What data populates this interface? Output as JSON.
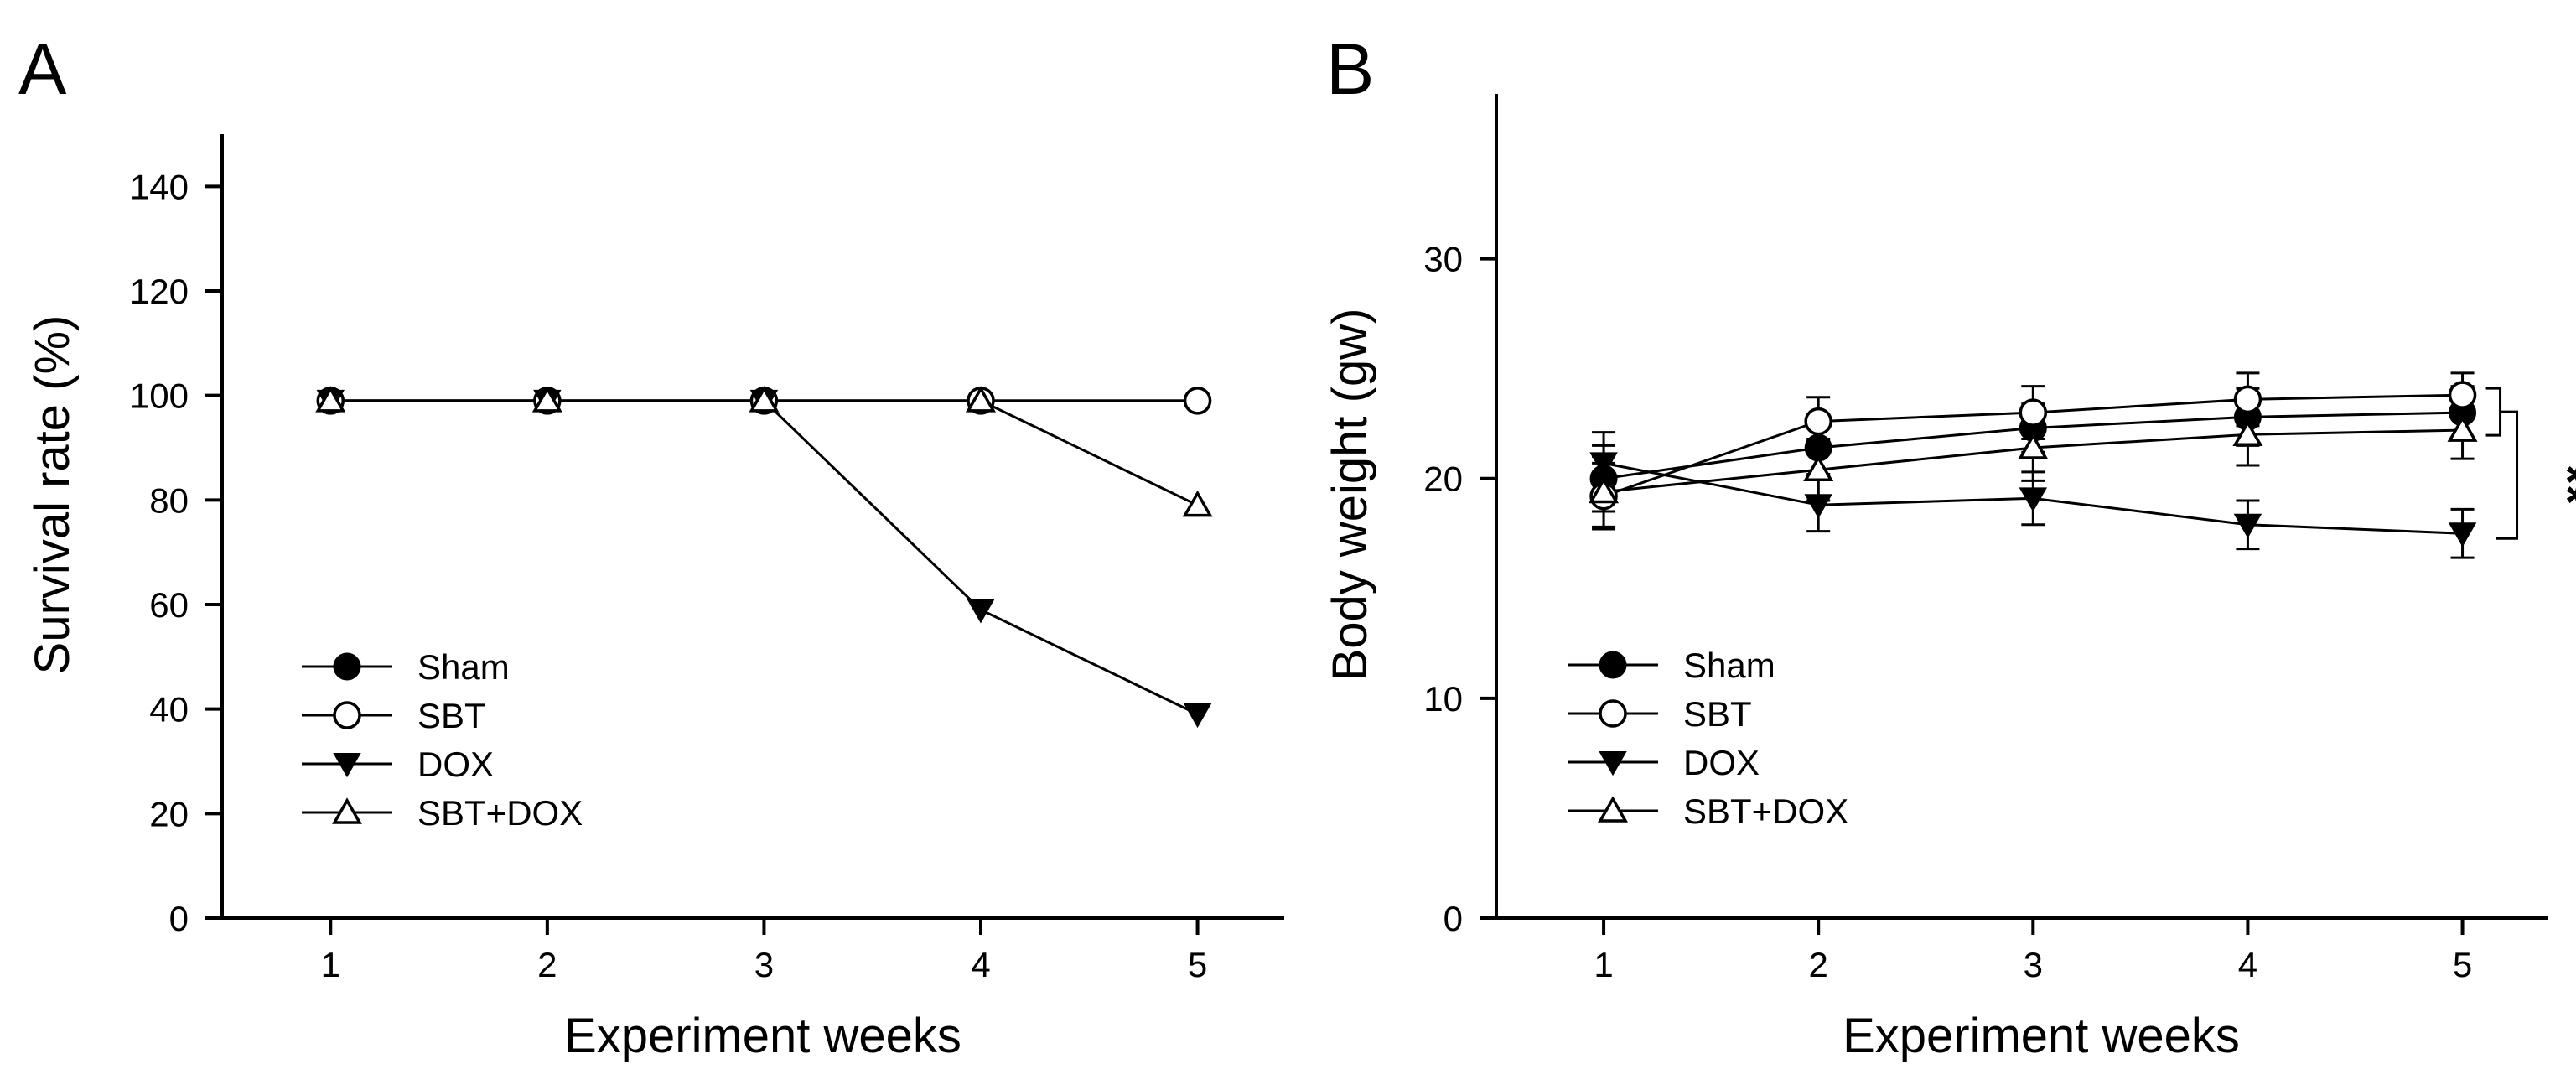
{
  "chart_data": [
    {
      "panel_label": "A",
      "type": "line",
      "xlabel": "Experiment weeks",
      "ylabel": "Survival rate (%)",
      "xlim": [
        0.5,
        5.4
      ],
      "ylim": [
        0,
        150
      ],
      "x": [
        1,
        2,
        3,
        4,
        5
      ],
      "xticks": [
        "1",
        "2",
        "3",
        "4",
        "5"
      ],
      "yticks": [
        "0",
        "20",
        "40",
        "60",
        "80",
        "100",
        "120",
        "140"
      ],
      "ytick_values": [
        0,
        20,
        40,
        60,
        80,
        100,
        120,
        140
      ],
      "legend_position": "lower-left",
      "series": [
        {
          "name": "Sham",
          "marker": "filled-circle",
          "values": [
            99,
            99,
            99,
            99,
            99
          ]
        },
        {
          "name": "SBT",
          "marker": "open-circle",
          "values": [
            99,
            99,
            99,
            99,
            99
          ]
        },
        {
          "name": "DOX",
          "marker": "filled-triangle-down",
          "values": [
            99,
            99,
            99,
            59,
            39
          ]
        },
        {
          "name": "SBT+DOX",
          "marker": "open-triangle-up",
          "values": [
            99,
            99,
            99,
            99,
            79
          ]
        }
      ]
    },
    {
      "panel_label": "B",
      "type": "line",
      "xlabel": "Experiment weeks",
      "ylabel": "Body weight (gw)",
      "xlim": [
        0.5,
        5.4
      ],
      "ylim": [
        0,
        37.5
      ],
      "x": [
        1,
        2,
        3,
        4,
        5
      ],
      "xticks": [
        "1",
        "2",
        "3",
        "4",
        "5"
      ],
      "yticks": [
        "0",
        "10",
        "20",
        "30"
      ],
      "ytick_values": [
        0,
        10,
        20,
        30
      ],
      "legend_position": "lower-left",
      "annotation": "**",
      "series": [
        {
          "name": "Sham",
          "marker": "filled-circle",
          "values": [
            20.0,
            21.4,
            22.3,
            22.8,
            23.0
          ],
          "errors": [
            1.5,
            1.2,
            1.1,
            1.3,
            1.2
          ]
        },
        {
          "name": "SBT",
          "marker": "open-circle",
          "values": [
            19.2,
            22.6,
            23.0,
            23.6,
            23.8
          ],
          "errors": [
            1.5,
            1.1,
            1.2,
            1.2,
            1.0
          ]
        },
        {
          "name": "DOX",
          "marker": "filled-triangle-down",
          "values": [
            20.7,
            18.8,
            19.1,
            17.9,
            17.5
          ],
          "errors": [
            1.4,
            1.2,
            1.2,
            1.1,
            1.1
          ]
        },
        {
          "name": "SBT+DOX",
          "marker": "open-triangle-up",
          "values": [
            19.4,
            20.4,
            21.4,
            22.0,
            22.2
          ],
          "errors": [
            1.6,
            1.4,
            1.5,
            1.4,
            1.3
          ]
        }
      ]
    }
  ]
}
